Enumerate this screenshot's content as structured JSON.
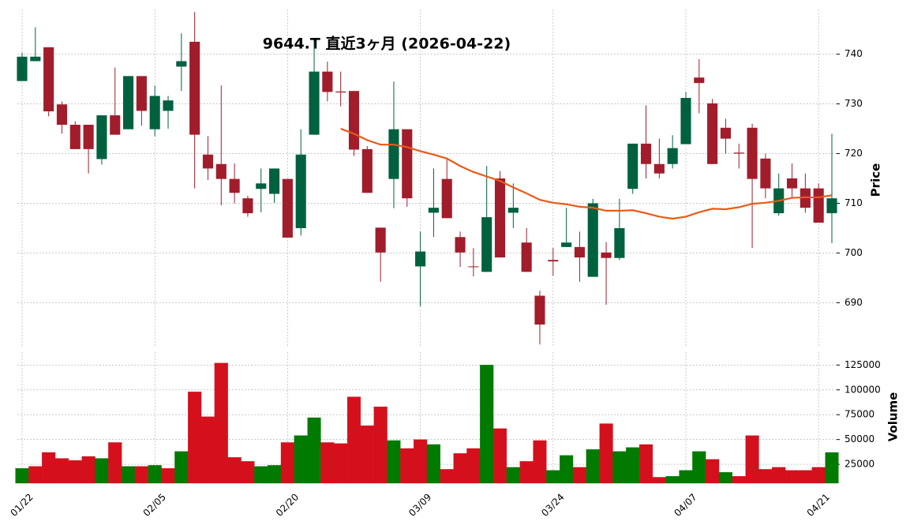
{
  "chart_data": {
    "type": "candlestick",
    "title": "9644.T  直近3ヶ月  (2026-04-22)",
    "ylabel": "Price",
    "categories": [
      "01/22",
      null,
      null,
      null,
      null,
      null,
      null,
      null,
      null,
      null,
      "02/05",
      null,
      null,
      null,
      null,
      null,
      null,
      null,
      null,
      null,
      "02/20",
      null,
      null,
      null,
      null,
      null,
      null,
      null,
      null,
      null,
      "03/09",
      null,
      null,
      null,
      null,
      null,
      null,
      null,
      null,
      null,
      "03/24",
      null,
      null,
      null,
      null,
      null,
      null,
      null,
      null,
      null,
      "04/07",
      null,
      null,
      null,
      null,
      null,
      null,
      null,
      null,
      null,
      "04/21",
      null
    ],
    "open": [
      734.6,
      738.6,
      741.4,
      729.9,
      725.8,
      725.8,
      718.9,
      727.7,
      724.9,
      735.6,
      724.9,
      728.6,
      737.5,
      742.5,
      719.8,
      717.9,
      714.9,
      711,
      712.9,
      711.9,
      714.9,
      705,
      723.8,
      736.5,
      732.5,
      732.6,
      720.9,
      705.1,
      714.9,
      724.9,
      697.3,
      708.1,
      714.9,
      703.2,
      697.3,
      696.2,
      715,
      708.1,
      702.1,
      691.4,
      698.6,
      701.2,
      701.2,
      695.2,
      700.1,
      699,
      712.9,
      722,
      717.9,
      717.9,
      721.9,
      735.3,
      730.1,
      725.2,
      720.2,
      725.2,
      719,
      708,
      715,
      713,
      713,
      708
    ],
    "high": [
      740.3,
      745.4,
      741.4,
      730.5,
      726.5,
      725.8,
      727.7,
      737.3,
      735.6,
      735.6,
      733.7,
      731.6,
      744.2,
      748.5,
      723.5,
      733.7,
      718,
      711.5,
      717,
      717,
      714.9,
      724.9,
      742.5,
      738.5,
      736.5,
      732.6,
      721.5,
      705.1,
      734.5,
      724.9,
      704.3,
      717,
      718.8,
      704.3,
      701,
      717.5,
      716.5,
      714,
      705,
      692.4,
      701,
      709.1,
      704.3,
      710.9,
      702.2,
      710.9,
      722,
      729.7,
      723,
      723.7,
      732.4,
      739,
      731,
      727,
      722,
      726,
      720,
      716,
      718,
      716,
      714,
      724
    ],
    "low": [
      734.6,
      738.6,
      727.5,
      724,
      720.9,
      716,
      717.8,
      723.8,
      724.9,
      725.6,
      723.5,
      725,
      732.6,
      713,
      714.7,
      709.6,
      710,
      707.3,
      708.2,
      710.1,
      703.1,
      703.5,
      723.8,
      730.5,
      729.5,
      719.5,
      712.1,
      694.2,
      709,
      709.3,
      689.3,
      703.2,
      707,
      697.2,
      695.3,
      696.2,
      699.1,
      705,
      696.2,
      681.6,
      695.4,
      701.2,
      694.2,
      695.2,
      689.6,
      698.6,
      711.9,
      715,
      715,
      717,
      721.9,
      728.1,
      717.9,
      720,
      717,
      701,
      711,
      707.5,
      711,
      708.1,
      706.1,
      702
    ],
    "close": [
      739.5,
      739.5,
      728.5,
      725.8,
      720.9,
      720.9,
      727.7,
      723.8,
      735.6,
      728.6,
      731.6,
      730.7,
      738.6,
      723.8,
      717,
      714.9,
      712.1,
      708,
      714,
      717,
      703.1,
      719.8,
      736.5,
      732.4,
      732.3,
      720.8,
      712.1,
      700.1,
      724.9,
      711,
      700.3,
      709.1,
      707,
      700.1,
      697.2,
      707.2,
      699.1,
      709.1,
      696.2,
      685.6,
      698.3,
      702.1,
      699.1,
      710,
      699,
      705,
      722,
      717.9,
      716,
      721.1,
      731.2,
      734.2,
      717.9,
      723,
      720,
      714.9,
      713,
      713,
      713,
      709.1,
      706.1,
      711
    ],
    "up_color": "#00613f",
    "down_color": "#a11d2b",
    "ylim": [
      681,
      749
    ],
    "yticks": [
      690,
      700,
      710,
      720,
      730,
      740
    ],
    "moving_average": {
      "color": "#ea5a16",
      "values": [
        null,
        null,
        null,
        null,
        null,
        null,
        null,
        null,
        null,
        null,
        null,
        null,
        null,
        null,
        null,
        null,
        null,
        null,
        null,
        null,
        null,
        null,
        null,
        null,
        725.0,
        724.0,
        722.7,
        721.8,
        721.8,
        721.3,
        720.5,
        719.8,
        719.0,
        717.5,
        716.3,
        715.4,
        714.5,
        713.2,
        712.0,
        710.7,
        710.1,
        709.8,
        709.3,
        709.1,
        708.5,
        708.5,
        708.6,
        708.0,
        707.3,
        706.9,
        707.3,
        708.2,
        708.9,
        708.8,
        709.2,
        709.9,
        710.1,
        710.5,
        711.1,
        711.2,
        711.2,
        711.6
      ]
    },
    "volume": {
      "label": "Volume",
      "values": [
        21000,
        23000,
        37000,
        31000,
        29000,
        33000,
        31000,
        47000,
        23000,
        23000,
        24000,
        21000,
        38000,
        98000,
        73000,
        127000,
        32000,
        28000,
        23000,
        24000,
        47000,
        54000,
        72000,
        47000,
        46000,
        93000,
        64000,
        83000,
        49000,
        41000,
        50000,
        45000,
        20000,
        36000,
        41000,
        125000,
        61000,
        22000,
        28000,
        49000,
        19000,
        34000,
        22000,
        40000,
        66000,
        38000,
        42000,
        45000,
        12000,
        13000,
        19000,
        38000,
        30000,
        17000,
        13000,
        54000,
        20000,
        22000,
        19000,
        19000,
        22000,
        37000
      ],
      "colors": [
        "#007a00",
        "#d4101c",
        "#d4101c",
        "#d4101c",
        "#d4101c",
        "#d4101c",
        "#007a00",
        "#d4101c",
        "#007a00",
        "#d4101c",
        "#007a00",
        "#d4101c",
        "#007a00",
        "#d4101c",
        "#d4101c",
        "#d4101c",
        "#d4101c",
        "#d4101c",
        "#007a00",
        "#007a00",
        "#d4101c",
        "#007a00",
        "#007a00",
        "#d4101c",
        "#d4101c",
        "#d4101c",
        "#d4101c",
        "#d4101c",
        "#007a00",
        "#d4101c",
        "#d4101c",
        "#007a00",
        "#d4101c",
        "#d4101c",
        "#d4101c",
        "#007a00",
        "#d4101c",
        "#007a00",
        "#d4101c",
        "#d4101c",
        "#007a00",
        "#007a00",
        "#d4101c",
        "#007a00",
        "#d4101c",
        "#007a00",
        "#007a00",
        "#d4101c",
        "#d4101c",
        "#007a00",
        "#007a00",
        "#007a00",
        "#d4101c",
        "#007a00",
        "#d4101c",
        "#d4101c",
        "#d4101c",
        "#d4101c",
        "#d4101c",
        "#d4101c",
        "#d4101c",
        "#007a00"
      ],
      "ylim": [
        6000,
        138000
      ],
      "yticks": [
        25000,
        50000,
        75000,
        100000,
        125000
      ]
    },
    "grid": true
  }
}
